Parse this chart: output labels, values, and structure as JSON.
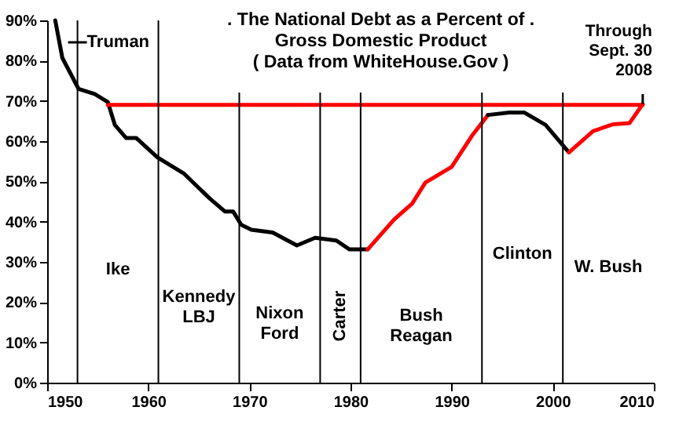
{
  "chart_data": {
    "type": "line",
    "title": ".  The National Debt as a Percent of  .\nGross Domestic Product\n( Data from WhiteHouse.Gov )",
    "xlim": [
      1950,
      2010
    ],
    "xticks": [
      1950,
      1960,
      1970,
      1980,
      1990,
      2000,
      2010
    ],
    "ylim": [
      0,
      90
    ],
    "yticks": [
      {
        "value": 0,
        "label": "0%"
      },
      {
        "value": 10,
        "label": "10%"
      },
      {
        "value": 20,
        "label": "20%"
      },
      {
        "value": 30,
        "label": "30%"
      },
      {
        "value": 40,
        "label": "40%"
      },
      {
        "value": 50,
        "label": "50%"
      },
      {
        "value": 60,
        "label": "60%"
      },
      {
        "value": 70,
        "label": "70%"
      },
      {
        "value": 80,
        "label": "80%"
      },
      {
        "value": 90,
        "label": "90%"
      }
    ],
    "grid": false,
    "line_style": "solid",
    "marker": "none",
    "series": [
      {
        "color": "#000000",
        "x": [
          1950.8,
          1951.5,
          1953.1,
          1954.7,
          1956,
          1956.7,
          1957.8,
          1958.8,
          1960.9,
          1963.5,
          1966.1,
          1967.6,
          1968.4,
          1969.2,
          1970.2,
          1972.3,
          1974.7,
          1976.5,
          1978.6,
          1979.9,
          1981.7
        ],
        "values": [
          90,
          80.7,
          73,
          71.7,
          69.7,
          64,
          60.8,
          60.8,
          56,
          52,
          45.7,
          42.5,
          42.5,
          39.2,
          38,
          37.3,
          34.1,
          36,
          35.3,
          33.1,
          33.1
        ]
      },
      {
        "color": "#ff0000",
        "x": [
          1981.7,
          1984.3,
          1986.1,
          1987.4,
          1990,
          1992,
          1993.6
        ],
        "values": [
          33.1,
          40.5,
          44.5,
          49.7,
          53.6,
          61.3,
          66.5
        ]
      },
      {
        "color": "#000000",
        "x": [
          1993.6,
          1995.7,
          1997.2,
          1999.3,
          2001.6
        ],
        "values": [
          66.5,
          67.1,
          67.1,
          64,
          57.2
        ]
      },
      {
        "color": "#ff0000",
        "x": [
          2001.6,
          2004,
          2006,
          2007.6,
          2008.9
        ],
        "values": [
          57.2,
          62.5,
          64.2,
          64.5,
          69.2
        ]
      },
      {
        "color": "#ff0000",
        "x": [
          1956,
          2008.9
        ],
        "values": [
          69,
          69
        ]
      }
    ],
    "ref_lines": [
      {
        "axis": "x",
        "value": 1953,
        "label": "Ike",
        "color": "#000000"
      },
      {
        "axis": "x",
        "value": 1961,
        "label": "Kennedy\nLBJ",
        "color": "#000000"
      },
      {
        "axis": "x",
        "value": 1969,
        "label": "Nixon\nFord",
        "color": "#000000"
      },
      {
        "axis": "x",
        "value": 1977,
        "label": "Carter",
        "color": "#000000"
      },
      {
        "axis": "x",
        "value": 1981,
        "label": "Bush\nReagan",
        "color": "#000000"
      },
      {
        "axis": "x",
        "value": 1993,
        "label": "Clinton",
        "color": "#000000"
      },
      {
        "axis": "x",
        "value": 2001,
        "label": "W. Bush",
        "color": "#000000"
      }
    ],
    "annotations": [
      "Truman",
      {
        "text": "Through\nSept. 30\n2008",
        "x": 2008.9,
        "y": 69.2
      }
    ]
  }
}
